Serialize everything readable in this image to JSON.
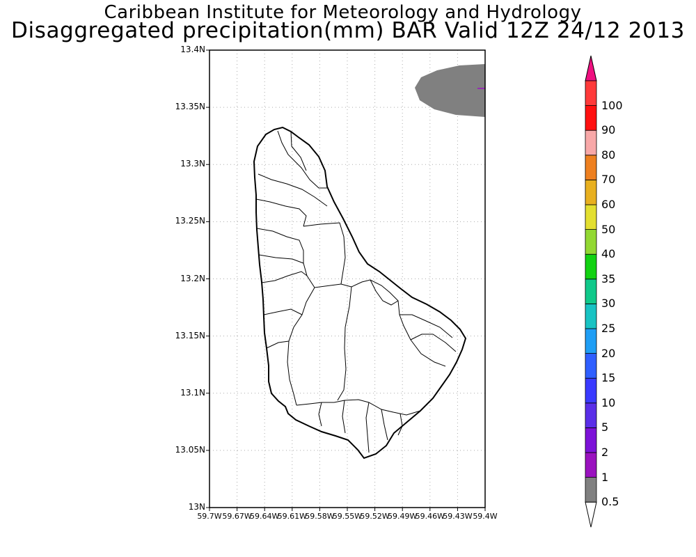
{
  "title": {
    "line1": "Caribbean Institute for Meteorology and Hydrology",
    "line2": "Disaggregated precipitation(mm) BAR Valid 12Z 24/12 2013"
  },
  "map": {
    "lat_ticks": [
      "13.4N",
      "13.35N",
      "13.3N",
      "13.25N",
      "13.2N",
      "13.15N",
      "13.1N",
      "13.05N",
      "13N"
    ],
    "lon_ticks": [
      "59.7W",
      "59.67W",
      "59.64W",
      "59.61W",
      "59.58W",
      "59.55W",
      "59.52W",
      "59.49W",
      "59.46W",
      "59.43W",
      "59.4W"
    ],
    "lat_range": [
      13.0,
      13.4
    ],
    "lon_range": [
      -59.7,
      -59.4
    ],
    "grid": true,
    "precip_area_color": "#808080",
    "coastline_color": "#000000"
  },
  "colorbar": {
    "labels": [
      "0.5",
      "1",
      "2",
      "5",
      "10",
      "15",
      "20",
      "25",
      "30",
      "35",
      "40",
      "50",
      "60",
      "70",
      "80",
      "90",
      "100"
    ],
    "colors": [
      "#808080",
      "#9a12bf",
      "#7d12d8",
      "#5a2ee8",
      "#3a3aff",
      "#2f5fff",
      "#1f9ef5",
      "#18c3c3",
      "#10c98a",
      "#12d212",
      "#92d832",
      "#e3df30",
      "#e8b020",
      "#ee8020",
      "#f8a8a8",
      "#ff1010",
      "#ff3a3a"
    ],
    "top_color": "#ef1080",
    "bottom_color": "#ffffff"
  }
}
